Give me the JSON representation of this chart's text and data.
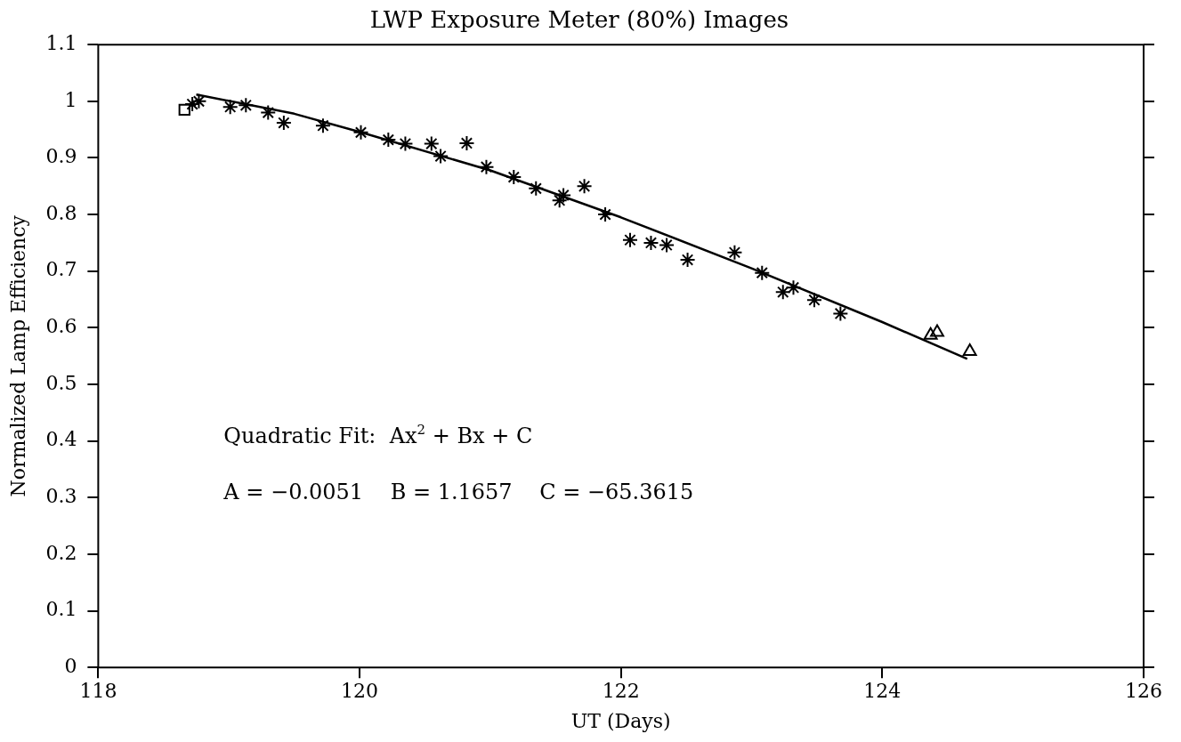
{
  "chart_data": {
    "type": "scatter",
    "title": "LWP Exposure Meter (80%) Images",
    "xlabel": "UT (Days)",
    "ylabel": "Normalized Lamp Efficiency",
    "annotations": [
      "Quadratic Fit:  Ax$^{2}$ + Bx + C",
      "A = −0.0051    B = 1.1657    C = −65.3615"
    ],
    "xlim": [
      118,
      126
    ],
    "xticks": [
      118,
      120,
      122,
      124,
      126
    ],
    "ylim": [
      0,
      1.1
    ],
    "yticks": [
      0,
      0.1,
      0.2,
      0.3,
      0.4,
      0.5,
      0.6,
      0.7,
      0.8,
      0.9,
      1,
      1.1
    ],
    "grid": false,
    "legend": false,
    "series": [
      {
        "marker": "square",
        "color": "#000000",
        "x": [
          118.66
        ],
        "values": [
          0.985
        ]
      },
      {
        "marker": "cross",
        "color": "#000000",
        "x": [
          118.72,
          118.77,
          119.01,
          119.13,
          119.3,
          119.42,
          119.72,
          120.01,
          120.22,
          120.35,
          120.55,
          120.62,
          120.82,
          120.97,
          121.18,
          121.35,
          121.53,
          121.56,
          121.72,
          121.88,
          122.07,
          122.23,
          122.35,
          122.51,
          122.87,
          123.08,
          123.24,
          123.32,
          123.48,
          123.68
        ],
        "values": [
          0.995,
          1.0,
          0.99,
          0.993,
          0.98,
          0.962,
          0.957,
          0.945,
          0.932,
          0.925,
          0.925,
          0.903,
          0.926,
          0.884,
          0.866,
          0.846,
          0.825,
          0.834,
          0.85,
          0.8,
          0.755,
          0.75,
          0.746,
          0.72,
          0.733,
          0.697,
          0.663,
          0.671,
          0.649,
          0.625
        ]
      },
      {
        "marker": "triangle",
        "color": "#000000",
        "x": [
          124.37,
          124.42,
          124.67
        ],
        "values": [
          0.587,
          0.592,
          0.558
        ]
      },
      {
        "type": "line",
        "marker": "none",
        "color": "#000000",
        "x": [
          118.75,
          119.5,
          120,
          121,
          122,
          123,
          124,
          124.65
        ],
        "values": [
          1.012,
          0.978,
          0.946,
          0.878,
          0.795,
          0.705,
          0.61,
          0.545
        ]
      }
    ]
  }
}
